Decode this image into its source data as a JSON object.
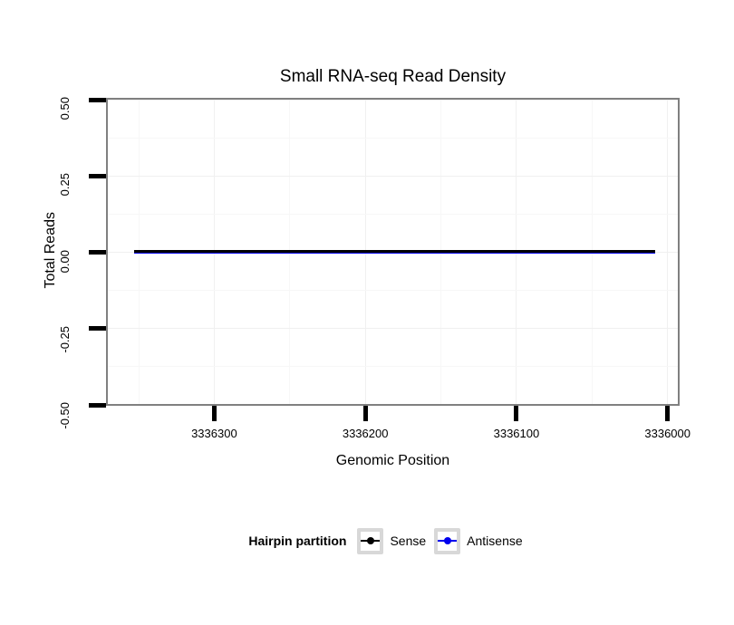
{
  "colors": {
    "background": "#ffffff",
    "panel_border": "#808080",
    "grid_major": "#f0f0f0",
    "grid_minor": "#f7f7f7",
    "tick": "#000000",
    "legend_key_border": "#d8d8d8",
    "sense": "#000000",
    "antisense": "#0000ee"
  },
  "chart_data": {
    "type": "line",
    "title": "Small RNA-seq Read Density",
    "xlabel": "Genomic Position",
    "ylabel": "Total Reads",
    "x_axis": {
      "reversed": true,
      "ticks": [
        3336300,
        3336200,
        3336100,
        3336000
      ],
      "tick_labels": [
        "3336300",
        "3336200",
        "3336100",
        "3336000"
      ],
      "approx_lim": [
        3336371,
        3335992
      ]
    },
    "y_axis": {
      "ticks": [
        0.5,
        0.25,
        0,
        -0.25,
        -0.5
      ],
      "tick_labels": [
        "0.50",
        "0.25",
        "0.00",
        "-0.25",
        "-0.50"
      ],
      "lim": [
        -0.5,
        0.5
      ]
    },
    "grid": {
      "major": true,
      "minor": true
    },
    "series": [
      {
        "name": "Sense",
        "color": "#000000",
        "x_start": 3336353,
        "x_end": 3336008,
        "y": 0
      },
      {
        "name": "Antisense",
        "color": "#0000ee",
        "x_start": 3336353,
        "x_end": 3336008,
        "y": 0
      }
    ],
    "legend_title": "Hairpin partition",
    "legend_position": "bottom"
  }
}
